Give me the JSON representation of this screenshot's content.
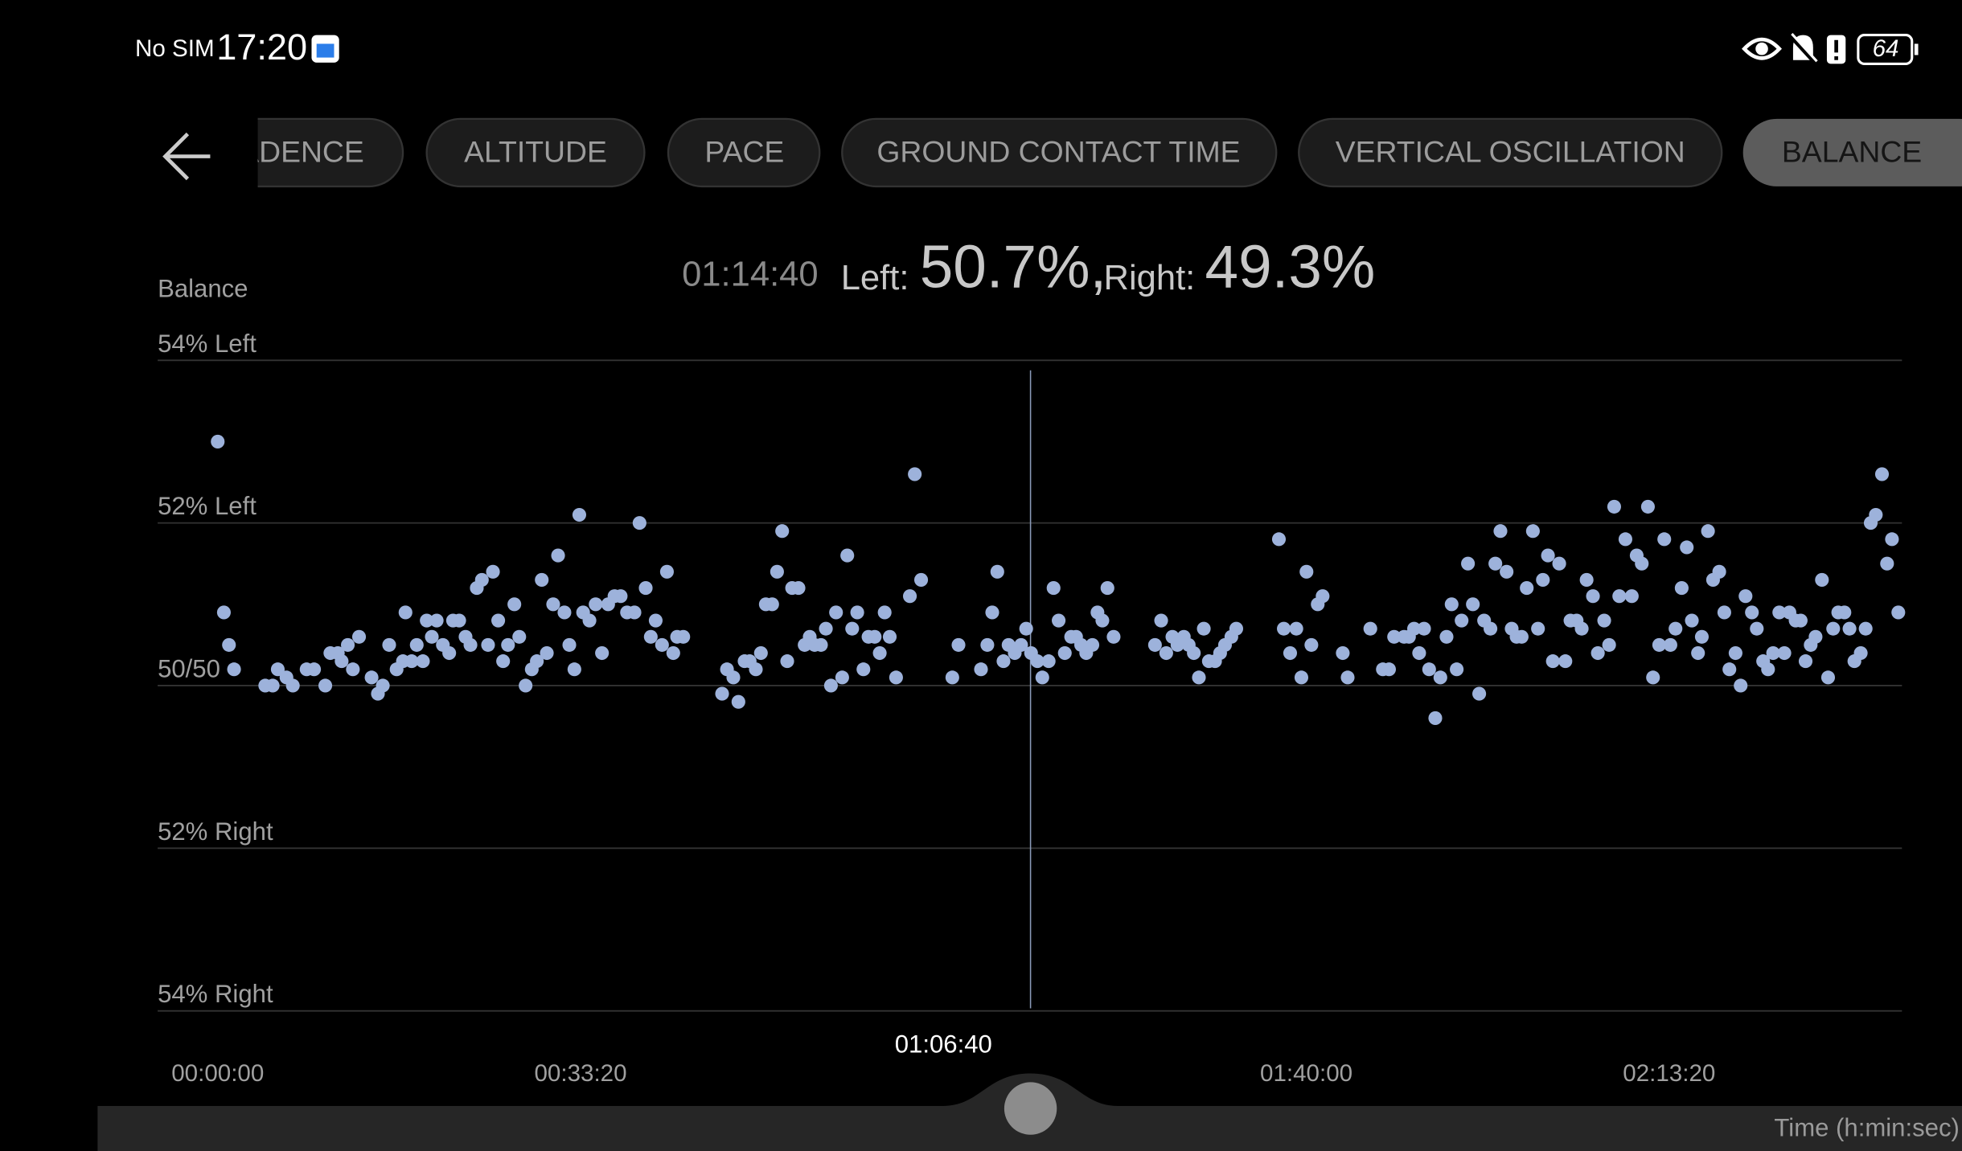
{
  "status_bar": {
    "carrier": "No SIM",
    "time": "17:20",
    "battery": "64"
  },
  "tabs": {
    "items": [
      "ADENCE",
      "ALTITUDE",
      "PACE",
      "GROUND CONTACT TIME",
      "VERTICAL OSCILLATION",
      "BALANCE"
    ]
  },
  "chart_data": {
    "type": "scatter",
    "y_label": "Balance",
    "x_label": "Time (h:min:sec)",
    "readout": {
      "left_label": "Left:",
      "left_value": "50.7%,",
      "right_label": "Right:",
      "right_value": "49.3%"
    },
    "cursor": {
      "value": 4480,
      "label": "01:14:40"
    },
    "scrubber": {
      "value": 4000,
      "label": "01:06:40"
    },
    "color": "#9db2db",
    "grid": true,
    "xlim": [
      -331,
      9283
    ],
    "ylim": [
      46,
      54
    ],
    "xticks": [
      {
        "value": 0,
        "label": "00:00:00"
      },
      {
        "value": 2000,
        "label": "00:33:20"
      },
      {
        "value": 6000,
        "label": "01:40:00"
      },
      {
        "value": 8000,
        "label": "02:13:20"
      }
    ],
    "yticks": [
      {
        "value": 54,
        "label": "54% Left"
      },
      {
        "value": 52,
        "label": "52% Left"
      },
      {
        "value": 50,
        "label": "50/50"
      },
      {
        "value": 48,
        "label": "52% Right"
      },
      {
        "value": 46,
        "label": "54% Right"
      }
    ],
    "x": [
      0,
      34,
      62,
      90,
      262,
      303,
      331,
      379,
      414,
      490,
      531,
      593,
      621,
      662,
      683,
      717,
      745,
      779,
      848,
      883,
      910,
      945,
      986,
      1021,
      1035,
      1069,
      1097,
      1131,
      1152,
      1180,
      1207,
      1241,
      1276,
      1297,
      1331,
      1366,
      1393,
      1428,
      1456,
      1490,
      1517,
      1546,
      1573,
      1600,
      1635,
      1662,
      1697,
      1731,
      1759,
      1786,
      1814,
      1849,
      1876,
      1911,
      1938,
      1966,
      1993,
      2014,
      2049,
      2083,
      2118,
      2152,
      2187,
      2221,
      2256,
      2297,
      2325,
      2359,
      2387,
      2414,
      2449,
      2476,
      2511,
      2532,
      2566,
      2780,
      2807,
      2842,
      2870,
      2904,
      2932,
      2966,
      2994,
      3021,
      3056,
      3083,
      3111,
      3139,
      3166,
      3201,
      3235,
      3263,
      3290,
      3325,
      3352,
      3380,
      3408,
      3442,
      3470,
      3497,
      3525,
      3559,
      3587,
      3621,
      3649,
      3676,
      3704,
      3739,
      3815,
      3842,
      3877,
      4049,
      4083,
      4207,
      4242,
      4269,
      4297,
      4331,
      4359,
      4393,
      4428,
      4456,
      4483,
      4518,
      4545,
      4580,
      4607,
      4635,
      4669,
      4704,
      4731,
      4759,
      4787,
      4821,
      4849,
      4876,
      4904,
      4938,
      5166,
      5200,
      5228,
      5262,
      5290,
      5325,
      5352,
      5380,
      5408,
      5435,
      5463,
      5497,
      5525,
      5552,
      5587,
      5614,
      5849,
      5876,
      5911,
      5945,
      5973,
      6001,
      6028,
      6063,
      6090,
      6201,
      6228,
      6353,
      6422,
      6456,
      6484,
      6539,
      6566,
      6594,
      6622,
      6649,
      6677,
      6711,
      6739,
      6773,
      6801,
      6829,
      6856,
      6891,
      6918,
      6953,
      6980,
      7015,
      7042,
      7070,
      7104,
      7132,
      7159,
      7187,
      7215,
      7249,
      7277,
      7304,
      7332,
      7359,
      7394,
      7428,
      7456,
      7490,
      7518,
      7545,
      7580,
      7607,
      7642,
      7669,
      7697,
      7725,
      7759,
      7794,
      7821,
      7849,
      7883,
      7911,
      7945,
      7973,
      8007,
      8035,
      8069,
      8097,
      8125,
      8159,
      8180,
      8214,
      8242,
      8276,
      8304,
      8332,
      8366,
      8394,
      8421,
      8456,
      8483,
      8518,
      8545,
      8573,
      8607,
      8635,
      8663,
      8697,
      8725,
      8752,
      8780,
      8807,
      8842,
      8876,
      8904,
      8932,
      8966,
      8994,
      9021,
      9056,
      9083,
      9111,
      9139,
      9173,
      9201,
      9228,
      9263
    ],
    "values": [
      53.0,
      50.9,
      50.5,
      50.2,
      50.0,
      50.0,
      50.2,
      50.1,
      50.0,
      50.2,
      50.2,
      50.0,
      50.4,
      50.4,
      50.3,
      50.5,
      50.2,
      50.6,
      50.1,
      49.9,
      50.0,
      50.5,
      50.2,
      50.3,
      50.9,
      50.3,
      50.5,
      50.3,
      50.8,
      50.6,
      50.8,
      50.5,
      50.4,
      50.8,
      50.8,
      50.6,
      50.5,
      51.2,
      51.3,
      50.5,
      51.4,
      50.8,
      50.3,
      50.5,
      51.0,
      50.6,
      50.0,
      50.2,
      50.3,
      51.3,
      50.4,
      51.0,
      51.6,
      50.9,
      50.5,
      50.2,
      52.1,
      50.9,
      50.8,
      51.0,
      50.4,
      51.0,
      51.1,
      51.1,
      50.9,
      50.9,
      52.0,
      51.2,
      50.6,
      50.8,
      50.5,
      51.4,
      50.4,
      50.6,
      50.6,
      49.9,
      50.2,
      50.1,
      49.8,
      50.3,
      50.3,
      50.2,
      50.4,
      51.0,
      51.0,
      51.4,
      51.9,
      50.3,
      51.2,
      51.2,
      50.5,
      50.6,
      50.5,
      50.5,
      50.7,
      50.0,
      50.9,
      50.1,
      51.6,
      50.7,
      50.9,
      50.2,
      50.6,
      50.6,
      50.4,
      50.9,
      50.6,
      50.1,
      51.1,
      52.6,
      51.3,
      50.1,
      50.5,
      50.2,
      50.5,
      50.9,
      51.4,
      50.3,
      50.5,
      50.4,
      50.5,
      50.7,
      50.4,
      50.3,
      50.1,
      50.3,
      51.2,
      50.8,
      50.4,
      50.6,
      50.6,
      50.5,
      50.4,
      50.5,
      50.9,
      50.8,
      51.2,
      50.6,
      50.5,
      50.8,
      50.4,
      50.6,
      50.5,
      50.6,
      50.5,
      50.4,
      50.1,
      50.7,
      50.3,
      50.3,
      50.4,
      50.5,
      50.6,
      50.7,
      51.8,
      50.7,
      50.4,
      50.7,
      50.1,
      51.4,
      50.5,
      51.0,
      51.1,
      50.4,
      50.1,
      50.7,
      50.2,
      50.2,
      50.6,
      50.6,
      50.6,
      50.7,
      50.4,
      50.7,
      50.2,
      49.6,
      50.1,
      50.6,
      51.0,
      50.2,
      50.8,
      51.5,
      51.0,
      49.9,
      50.8,
      50.7,
      51.5,
      51.9,
      51.4,
      50.7,
      50.6,
      50.6,
      51.2,
      51.9,
      50.7,
      51.3,
      51.6,
      50.3,
      51.5,
      50.3,
      50.8,
      50.8,
      50.7,
      51.3,
      51.1,
      50.4,
      50.8,
      50.5,
      52.2,
      51.1,
      51.8,
      51.1,
      51.6,
      51.5,
      52.2,
      50.1,
      50.5,
      51.8,
      50.5,
      50.7,
      51.2,
      51.7,
      50.8,
      50.4,
      50.6,
      51.9,
      51.3,
      51.4,
      50.9,
      50.2,
      50.4,
      50.0,
      51.1,
      50.9,
      50.7,
      50.3,
      50.2,
      50.4,
      50.9,
      50.4,
      50.9,
      50.8,
      50.8,
      50.3,
      50.5,
      50.6,
      51.3,
      50.1,
      50.7,
      50.9,
      50.9,
      50.7,
      50.3,
      50.4,
      50.7,
      52.0,
      52.1,
      52.6,
      51.5,
      51.8,
      50.9
    ]
  }
}
